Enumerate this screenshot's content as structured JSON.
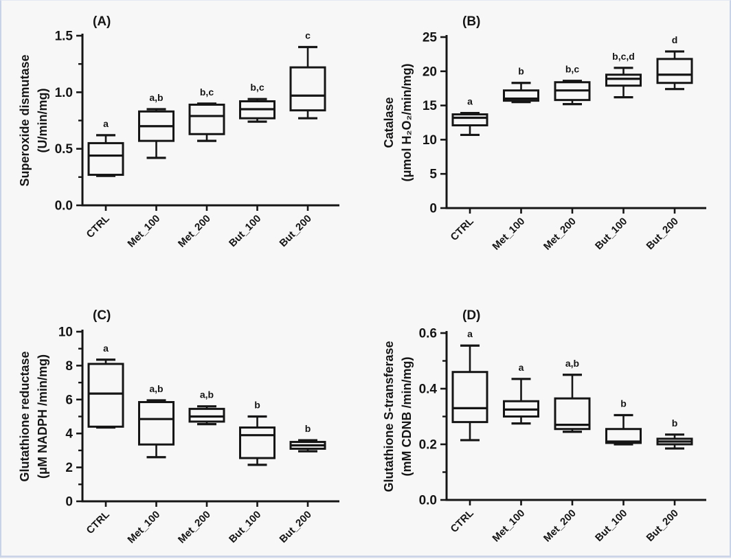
{
  "figure": {
    "background": "#f7f7f8",
    "ink": "#151515",
    "border_color": "#c9d3e8"
  },
  "chart_data": [
    {
      "type": "box",
      "panel_label": "(A)",
      "ylabel_lines": [
        "Superoxide dismutase",
        "(U/min/mg)"
      ],
      "categories": [
        "CTRL",
        "Met_100",
        "Met_200",
        "But_100",
        "But_200"
      ],
      "ylim": [
        0,
        1.5
      ],
      "ytick_major": 0.5,
      "ytick_minor": 0.25,
      "ytick_decimals": 1,
      "grid": "off",
      "boxes": [
        {
          "category": "CTRL",
          "sig_letters": "a",
          "whislo": 0.26,
          "q1": 0.27,
          "med": 0.44,
          "q3": 0.55,
          "whishi": 0.62
        },
        {
          "category": "Met_100",
          "sig_letters": "a,b",
          "whislo": 0.42,
          "q1": 0.57,
          "med": 0.7,
          "q3": 0.83,
          "whishi": 0.85
        },
        {
          "category": "Met_200",
          "sig_letters": "b,c",
          "whislo": 0.57,
          "q1": 0.63,
          "med": 0.79,
          "q3": 0.89,
          "whishi": 0.9
        },
        {
          "category": "But_100",
          "sig_letters": "b,c",
          "whislo": 0.74,
          "q1": 0.77,
          "med": 0.85,
          "q3": 0.92,
          "whishi": 0.94
        },
        {
          "category": "But_200",
          "sig_letters": "c",
          "whislo": 0.77,
          "q1": 0.84,
          "med": 0.97,
          "q3": 1.22,
          "whishi": 1.4
        }
      ]
    },
    {
      "type": "box",
      "panel_label": "(B)",
      "ylabel_lines": [
        "Catalase",
        "(μmol H₂O₂/min/mg)"
      ],
      "categories": [
        "CTRL",
        "Met_100",
        "Met_200",
        "But_100",
        "But_200"
      ],
      "ylim": [
        0,
        25
      ],
      "ytick_major": 5,
      "ytick_minor": null,
      "ytick_decimals": 0,
      "grid": "off",
      "boxes": [
        {
          "category": "CTRL",
          "sig_letters": "a",
          "whislo": 10.7,
          "q1": 12.1,
          "med": 13.2,
          "q3": 13.7,
          "whishi": 13.9
        },
        {
          "category": "Met_100",
          "sig_letters": "b",
          "whislo": 15.5,
          "q1": 15.7,
          "med": 16.0,
          "q3": 17.2,
          "whishi": 18.3
        },
        {
          "category": "Met_200",
          "sig_letters": "b,c",
          "whislo": 15.2,
          "q1": 15.8,
          "med": 17.2,
          "q3": 18.4,
          "whishi": 18.6
        },
        {
          "category": "But_100",
          "sig_letters": "b,c,d",
          "whislo": 16.2,
          "q1": 17.9,
          "med": 18.9,
          "q3": 19.5,
          "whishi": 20.5
        },
        {
          "category": "But_200",
          "sig_letters": "d",
          "whislo": 17.4,
          "q1": 18.3,
          "med": 19.5,
          "q3": 21.8,
          "whishi": 22.9
        }
      ]
    },
    {
      "type": "box",
      "panel_label": "(C)",
      "ylabel_lines": [
        "Glutathione reductase",
        "(μM NADPH /min/mg)"
      ],
      "categories": [
        "CTRL",
        "Met_100",
        "Met_200",
        "But_100",
        "But_200"
      ],
      "ylim": [
        0,
        10
      ],
      "ytick_major": 2,
      "ytick_minor": 1,
      "ytick_decimals": 0,
      "grid": "off",
      "boxes": [
        {
          "category": "CTRL",
          "sig_letters": "a",
          "whislo": 4.35,
          "q1": 4.4,
          "med": 6.35,
          "q3": 8.1,
          "whishi": 8.35
        },
        {
          "category": "Met_100",
          "sig_letters": "a,b",
          "whislo": 2.6,
          "q1": 3.35,
          "med": 4.85,
          "q3": 5.85,
          "whishi": 5.95
        },
        {
          "category": "Met_200",
          "sig_letters": "a,b",
          "whislo": 4.55,
          "q1": 4.7,
          "med": 5.0,
          "q3": 5.45,
          "whishi": 5.6
        },
        {
          "category": "But_100",
          "sig_letters": "b",
          "whislo": 2.15,
          "q1": 2.55,
          "med": 3.9,
          "q3": 4.35,
          "whishi": 5.0
        },
        {
          "category": "But_200",
          "sig_letters": "b",
          "whislo": 2.95,
          "q1": 3.1,
          "med": 3.3,
          "q3": 3.5,
          "whishi": 3.6
        }
      ]
    },
    {
      "type": "box",
      "panel_label": "(D)",
      "ylabel_lines": [
        "Glutathione S-transferase",
        "(mM CDNB /min/mg)"
      ],
      "categories": [
        "CTRL",
        "Met_100",
        "Met_200",
        "But_100",
        "But_200"
      ],
      "ylim": [
        0,
        0.6
      ],
      "ytick_major": 0.2,
      "ytick_minor": 0.1,
      "ytick_decimals": 1,
      "grid": "off",
      "boxes": [
        {
          "category": "CTRL",
          "sig_letters": "a",
          "whislo": 0.215,
          "q1": 0.28,
          "med": 0.33,
          "q3": 0.46,
          "whishi": 0.555
        },
        {
          "category": "Met_100",
          "sig_letters": "a",
          "whislo": 0.275,
          "q1": 0.3,
          "med": 0.325,
          "q3": 0.355,
          "whishi": 0.435
        },
        {
          "category": "Met_200",
          "sig_letters": "a,b",
          "whislo": 0.245,
          "q1": 0.255,
          "med": 0.27,
          "q3": 0.365,
          "whishi": 0.45
        },
        {
          "category": "But_100",
          "sig_letters": "b",
          "whislo": 0.2,
          "q1": 0.205,
          "med": 0.21,
          "q3": 0.255,
          "whishi": 0.305
        },
        {
          "category": "But_200",
          "sig_letters": "b",
          "whislo": 0.185,
          "q1": 0.2,
          "med": 0.21,
          "q3": 0.22,
          "whishi": 0.235
        }
      ]
    }
  ]
}
